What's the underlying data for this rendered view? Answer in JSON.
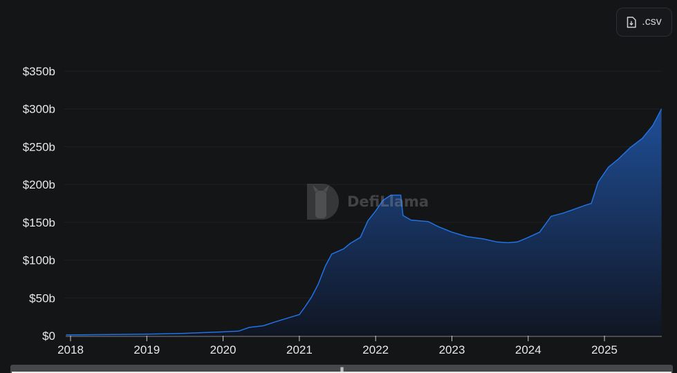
{
  "toolbar": {
    "csv_label": ".csv",
    "csv_icon": "file-download-icon"
  },
  "watermark": {
    "text": "DefiLlama"
  },
  "colors": {
    "background": "#141517",
    "line": "#2172e5",
    "area_top": "#1f4e97",
    "area_bottom": "#101623",
    "grid": "#1f2124",
    "axis": "#4a4c50"
  },
  "chart_data": {
    "type": "area",
    "title": "",
    "xlabel": "",
    "ylabel": "",
    "ylim": [
      0,
      350
    ],
    "y_unit": "billion USD",
    "y_ticks": [
      0,
      50,
      100,
      150,
      200,
      250,
      300,
      350
    ],
    "y_tick_labels": [
      "$0",
      "$50b",
      "$100b",
      "$150b",
      "$200b",
      "$250b",
      "$300b",
      "$350b"
    ],
    "x_tick_labels": [
      "2018",
      "2019",
      "2020",
      "2021",
      "2022",
      "2023",
      "2024",
      "2025"
    ],
    "grid": true,
    "legend": "none",
    "x": [
      "2017-12-10",
      "2019-01-01",
      "2019-06-15",
      "2019-12-25",
      "2020-03-15",
      "2020-05-05",
      "2020-07-10",
      "2020-09-15",
      "2020-11-15",
      "2021-01-01",
      "2021-01-25",
      "2021-02-28",
      "2021-04-01",
      "2021-05-05",
      "2021-06-05",
      "2021-08-01",
      "2021-09-01",
      "2021-10-20",
      "2021-11-25",
      "2022-01-01",
      "2022-02-05",
      "2022-03-15",
      "2022-05-01",
      "2022-05-12",
      "2022-06-20",
      "2022-09-10",
      "2022-10-30",
      "2023-01-01",
      "2023-03-15",
      "2023-06-01",
      "2023-08-05",
      "2023-09-25",
      "2023-11-10",
      "2024-01-01",
      "2024-02-25",
      "2024-04-20",
      "2024-06-15",
      "2024-08-05",
      "2024-10-05",
      "2024-10-30",
      "2024-12-01",
      "2025-01-20",
      "2025-03-10",
      "2025-05-05",
      "2025-07-01",
      "2025-08-20",
      "2025-10-01"
    ],
    "values": [
      1,
      2,
      3,
      5,
      6,
      11,
      13,
      19,
      24,
      28,
      37,
      51,
      68,
      92,
      108,
      115,
      122,
      130,
      152,
      165,
      179,
      186,
      186,
      159,
      153,
      151,
      144,
      137,
      131,
      128,
      124,
      123,
      124,
      130,
      137,
      158,
      162,
      167,
      173,
      175,
      203,
      223,
      234,
      249,
      261,
      278,
      300
    ]
  }
}
